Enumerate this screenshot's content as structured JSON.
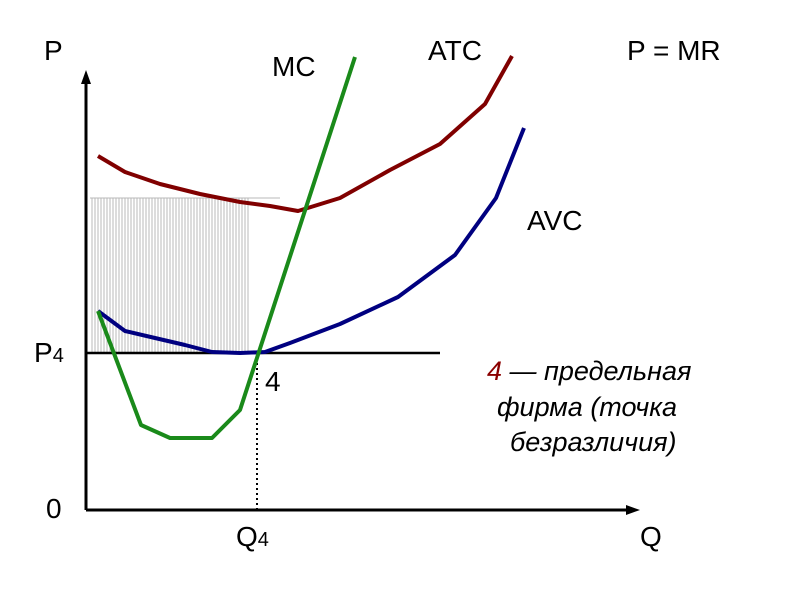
{
  "axes": {
    "y_label": "P",
    "x_label": "Q",
    "origin_label": "0",
    "price_label": "P",
    "price_subscript": "4",
    "quantity_label": "Q",
    "quantity_subscript": "4"
  },
  "curves": {
    "mc": {
      "label": "MC",
      "color": "#1a8a1a"
    },
    "atc": {
      "label": "ATC",
      "color": "#800000"
    },
    "avc": {
      "label": "AVC",
      "color": "#000080"
    },
    "price_line": {
      "label": "P = MR",
      "color": "#000000"
    }
  },
  "point": {
    "label": "4"
  },
  "note": {
    "highlight": "4",
    "highlight_color": "#8b0000",
    "line1_rest": " — предельная",
    "line2": "фирма  (точка",
    "line3": "безразличия)"
  },
  "shading_color": "#b8b8b8"
}
